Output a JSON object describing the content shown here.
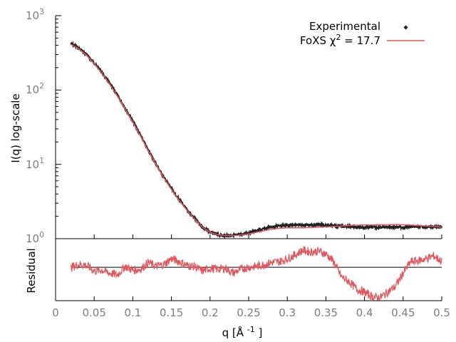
{
  "chart_data": [
    {
      "type": "scatter",
      "panel": "main",
      "xlim": [
        0,
        0.5
      ],
      "ylim": [
        1,
        1000
      ],
      "y_scale": "log",
      "ylabel": "I(q) log-scale",
      "y_ticks": [
        {
          "value": 1,
          "base": "10",
          "exp": "0"
        },
        {
          "value": 10,
          "base": "10",
          "exp": "1"
        },
        {
          "value": 100,
          "base": "10",
          "exp": "2"
        },
        {
          "value": 1000,
          "base": "10",
          "exp": "3"
        }
      ],
      "legend_position": "top-right",
      "grid": false,
      "series": [
        {
          "name": "Experimental",
          "style": "points",
          "color": "#222222",
          "x": [
            0.02,
            0.03,
            0.04,
            0.05,
            0.06,
            0.07,
            0.08,
            0.09,
            0.1,
            0.11,
            0.12,
            0.13,
            0.14,
            0.15,
            0.16,
            0.17,
            0.18,
            0.19,
            0.2,
            0.21,
            0.22,
            0.23,
            0.24,
            0.25,
            0.26,
            0.27,
            0.28,
            0.29,
            0.3,
            0.31,
            0.32,
            0.33,
            0.34,
            0.35,
            0.36,
            0.37,
            0.38,
            0.39,
            0.4,
            0.41,
            0.42,
            0.43,
            0.44,
            0.45,
            0.46,
            0.47,
            0.48,
            0.49,
            0.5
          ],
          "y": [
            420,
            365,
            300,
            230,
            172,
            122,
            85,
            57,
            38,
            24.5,
            15.5,
            10.1,
            6.7,
            4.7,
            3.35,
            2.45,
            1.85,
            1.45,
            1.22,
            1.13,
            1.1,
            1.11,
            1.13,
            1.2,
            1.28,
            1.36,
            1.44,
            1.5,
            1.52,
            1.52,
            1.53,
            1.52,
            1.56,
            1.52,
            1.5,
            1.48,
            1.45,
            1.43,
            1.42,
            1.42,
            1.42,
            1.43,
            1.44,
            1.43,
            1.44,
            1.45,
            1.44,
            1.44,
            1.43
          ]
        },
        {
          "name": "FoXS χ² = 17.7",
          "name_parts": {
            "prefix": "FoXS χ",
            "sup": "2",
            "suffix": " = 17.7"
          },
          "style": "line",
          "color": "#e0565b",
          "x": [
            0.02,
            0.03,
            0.04,
            0.05,
            0.06,
            0.07,
            0.08,
            0.09,
            0.1,
            0.11,
            0.12,
            0.13,
            0.14,
            0.15,
            0.16,
            0.17,
            0.18,
            0.19,
            0.2,
            0.21,
            0.22,
            0.23,
            0.24,
            0.25,
            0.26,
            0.27,
            0.28,
            0.29,
            0.3,
            0.31,
            0.32,
            0.33,
            0.34,
            0.35,
            0.36,
            0.37,
            0.38,
            0.39,
            0.4,
            0.41,
            0.42,
            0.43,
            0.44,
            0.45,
            0.46,
            0.47,
            0.48,
            0.49,
            0.5
          ],
          "y": [
            410,
            360,
            295,
            226,
            168,
            120,
            83,
            56,
            37,
            24,
            15.2,
            10,
            6.6,
            4.6,
            3.3,
            2.42,
            1.84,
            1.44,
            1.22,
            1.13,
            1.1,
            1.1,
            1.12,
            1.16,
            1.22,
            1.28,
            1.34,
            1.38,
            1.4,
            1.4,
            1.4,
            1.41,
            1.43,
            1.44,
            1.46,
            1.48,
            1.5,
            1.52,
            1.53,
            1.53,
            1.54,
            1.54,
            1.55,
            1.54,
            1.52,
            1.5,
            1.48,
            1.46,
            1.43
          ]
        }
      ]
    },
    {
      "type": "line",
      "panel": "residual",
      "ylabel": "Residual",
      "xlabel_parts": {
        "prefix": "q [Å ",
        "sup": "-1",
        "suffix": " ]"
      },
      "xlim": [
        0,
        0.5
      ],
      "ylim": [
        -3.5,
        3
      ],
      "x_ticks": [
        "0",
        "0.05",
        "0.1",
        "0.15",
        "0.2",
        "0.25",
        "0.3",
        "0.35",
        "0.4",
        "0.45",
        "0.5"
      ],
      "zero_line": true,
      "series": [
        {
          "name": "",
          "color": "#e0565b",
          "x": [
            0.02,
            0.03,
            0.04,
            0.05,
            0.06,
            0.07,
            0.08,
            0.09,
            0.1,
            0.11,
            0.12,
            0.13,
            0.14,
            0.15,
            0.16,
            0.17,
            0.18,
            0.19,
            0.2,
            0.21,
            0.22,
            0.23,
            0.24,
            0.25,
            0.26,
            0.27,
            0.28,
            0.29,
            0.3,
            0.31,
            0.32,
            0.33,
            0.34,
            0.35,
            0.36,
            0.37,
            0.38,
            0.39,
            0.4,
            0.41,
            0.42,
            0.43,
            0.44,
            0.45,
            0.46,
            0.47,
            0.48,
            0.49,
            0.5
          ],
          "y": [
            0,
            0.3,
            0.2,
            -0.4,
            -0.3,
            -0.6,
            -0.8,
            0.1,
            -0.3,
            -0.2,
            0.5,
            0.1,
            0.3,
            0.9,
            0.6,
            0.2,
            0.1,
            -0.4,
            -0.1,
            -0.2,
            -0.1,
            -0.6,
            -0.2,
            0,
            0.1,
            0.3,
            0.5,
            0.6,
            0.9,
            1.3,
            1.8,
            1.6,
            1.7,
            1.4,
            0.6,
            -1.0,
            -1.5,
            -2.3,
            -2.6,
            -3.1,
            -3.2,
            -2.6,
            -2.0,
            -0.6,
            0.6,
            0.7,
            0.9,
            1.2,
            0.6
          ]
        }
      ]
    }
  ]
}
